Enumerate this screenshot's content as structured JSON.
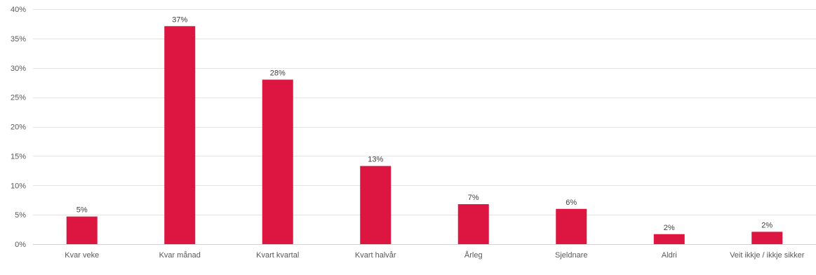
{
  "chart_data": {
    "type": "bar",
    "title": "",
    "xlabel": "",
    "ylabel": "",
    "categories": [
      "Kvar veke",
      "Kvar månad",
      "Kvart kvartal",
      "Kvart halvår",
      "Årleg",
      "Sjeldnare",
      "Aldri",
      "Veit ikkje / ikkje sikker"
    ],
    "values": [
      4.7,
      37.1,
      28.0,
      13.3,
      6.8,
      6.0,
      1.7,
      2.1
    ],
    "value_labels": [
      "5%",
      "37%",
      "28%",
      "13%",
      "7%",
      "6%",
      "2%",
      "2%"
    ],
    "ylim": [
      0,
      40
    ],
    "yticks": [
      0,
      5,
      10,
      15,
      20,
      25,
      30,
      35,
      40
    ],
    "ytick_labels": [
      "0%",
      "5%",
      "10%",
      "15%",
      "20%",
      "25%",
      "30%",
      "35%",
      "40%"
    ],
    "grid": true,
    "legend": "none",
    "bar_color": "#dc1640"
  }
}
